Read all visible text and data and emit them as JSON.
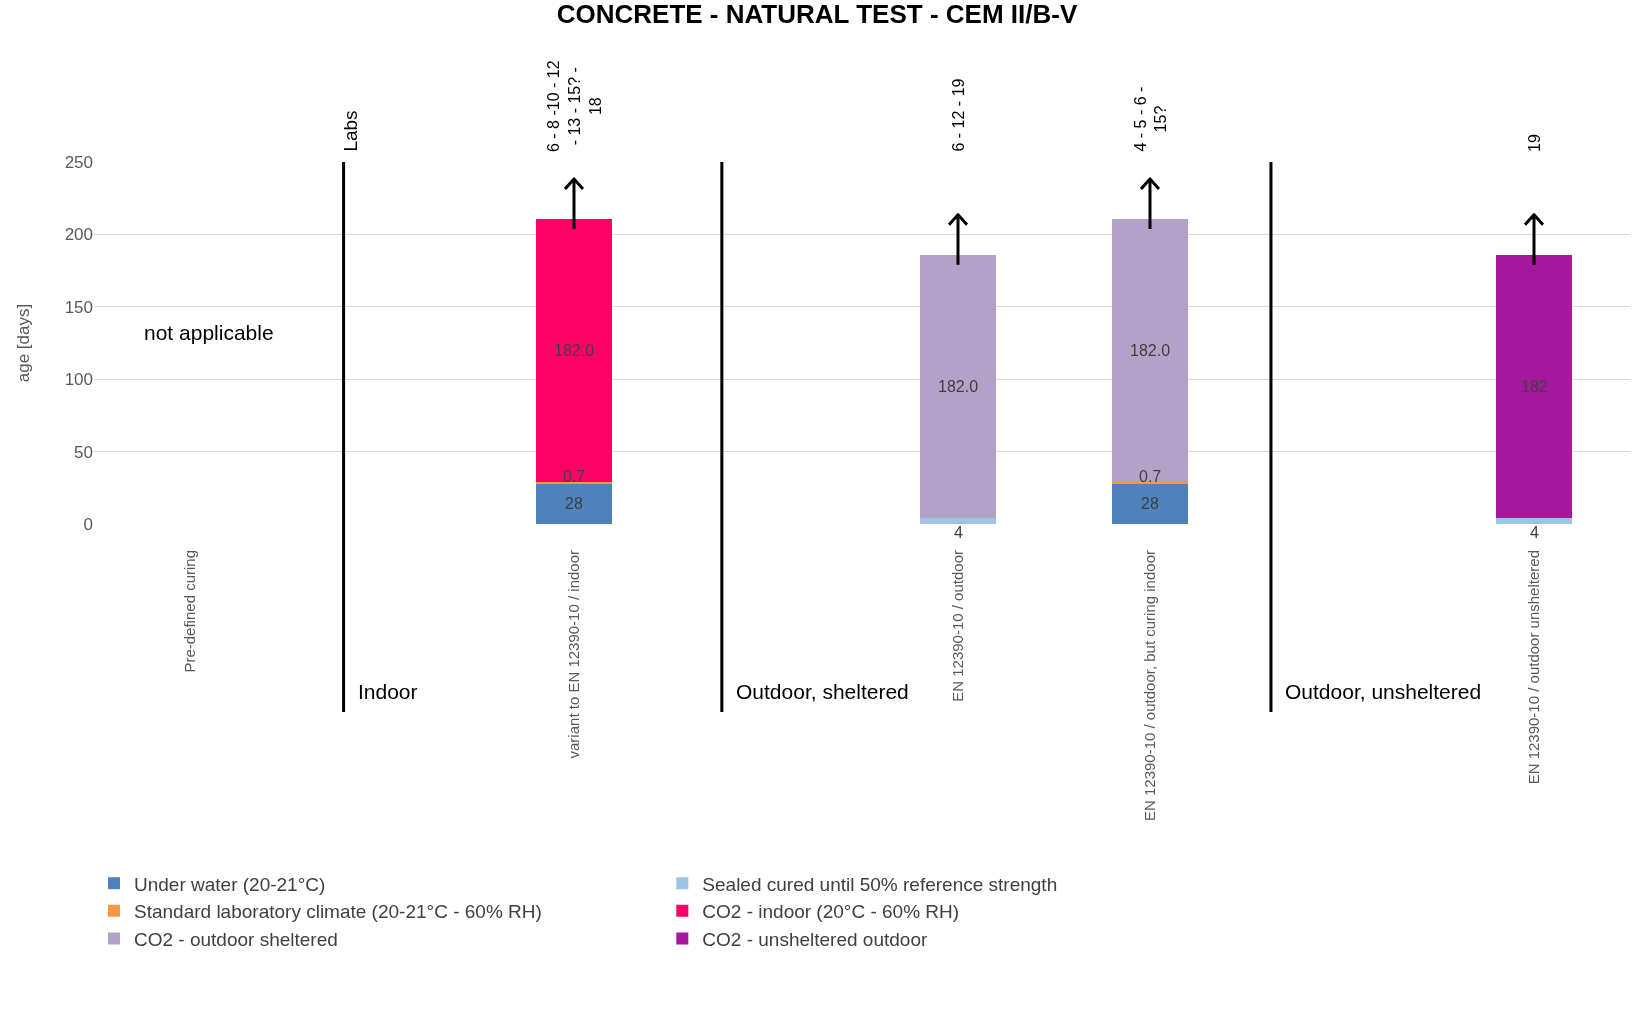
{
  "chart_data": {
    "type": "bar",
    "title": "CONCRETE - NATURAL TEST - CEM II/B-V",
    "ylabel": "age [days]",
    "stacked": true,
    "categories": [
      "Pre-defined curing",
      null,
      "variant to EN 12390-10 / indoor",
      null,
      "EN 12390-10 / outdoor",
      "EN 12390-10 / outdoor, but curing indoor",
      null,
      "EN 12390-10 / outdoor unsheltered"
    ],
    "series": [
      {
        "name": "Under water (20-21°C)",
        "color": "#4f81bd",
        "values": [
          null,
          null,
          28,
          null,
          null,
          28,
          null,
          null
        ],
        "value_labels": [
          null,
          null,
          "28",
          null,
          null,
          "28",
          null,
          null
        ]
      },
      {
        "name": "Sealed cured until 50% reference strength",
        "color": "#9dc3e6",
        "values": [
          null,
          null,
          null,
          null,
          4,
          null,
          null,
          4
        ],
        "value_labels": [
          null,
          null,
          null,
          null,
          "4",
          null,
          null,
          "4"
        ]
      },
      {
        "name": "Standard laboratory climate (20-21°C - 60% RH)",
        "color": "#f79646",
        "values": [
          null,
          null,
          0.7,
          null,
          null,
          0.7,
          null,
          null
        ],
        "value_labels": [
          null,
          null,
          "0.7",
          null,
          null,
          "0.7",
          null,
          null
        ]
      },
      {
        "name": "CO2 - indoor (20°C - 60% RH)",
        "color": "#ff0066",
        "values": [
          null,
          null,
          182,
          null,
          null,
          null,
          null,
          null
        ],
        "value_labels": [
          null,
          null,
          "182.0",
          null,
          null,
          null,
          null,
          null
        ]
      },
      {
        "name": "CO2 - outdoor sheltered",
        "color": "#b3a2c7",
        "values": [
          null,
          null,
          null,
          null,
          182,
          182,
          null,
          null
        ],
        "value_labels": [
          null,
          null,
          null,
          null,
          "182.0",
          "182.0",
          null,
          null
        ]
      },
      {
        "name": "CO2 - unsheltered outdoor",
        "color": "#a5179d",
        "values": [
          null,
          null,
          null,
          null,
          null,
          null,
          null,
          182
        ],
        "value_labels": [
          null,
          null,
          null,
          null,
          null,
          null,
          null,
          "182"
        ]
      }
    ],
    "ylim": [
      0,
      250
    ],
    "yticks": [
      0,
      50,
      100,
      150,
      200,
      250
    ],
    "grid": "y",
    "legend": "bottom",
    "annotations": [
      "Labs",
      "not applicable",
      "Indoor",
      "Outdoor, sheltered",
      "Outdoor, unsheltered",
      "6 - 8 -10 - 12 - 13 - 15? - 18",
      "6 - 12 - 19",
      "4 - 5 - 6 - 15?",
      "19"
    ]
  }
}
